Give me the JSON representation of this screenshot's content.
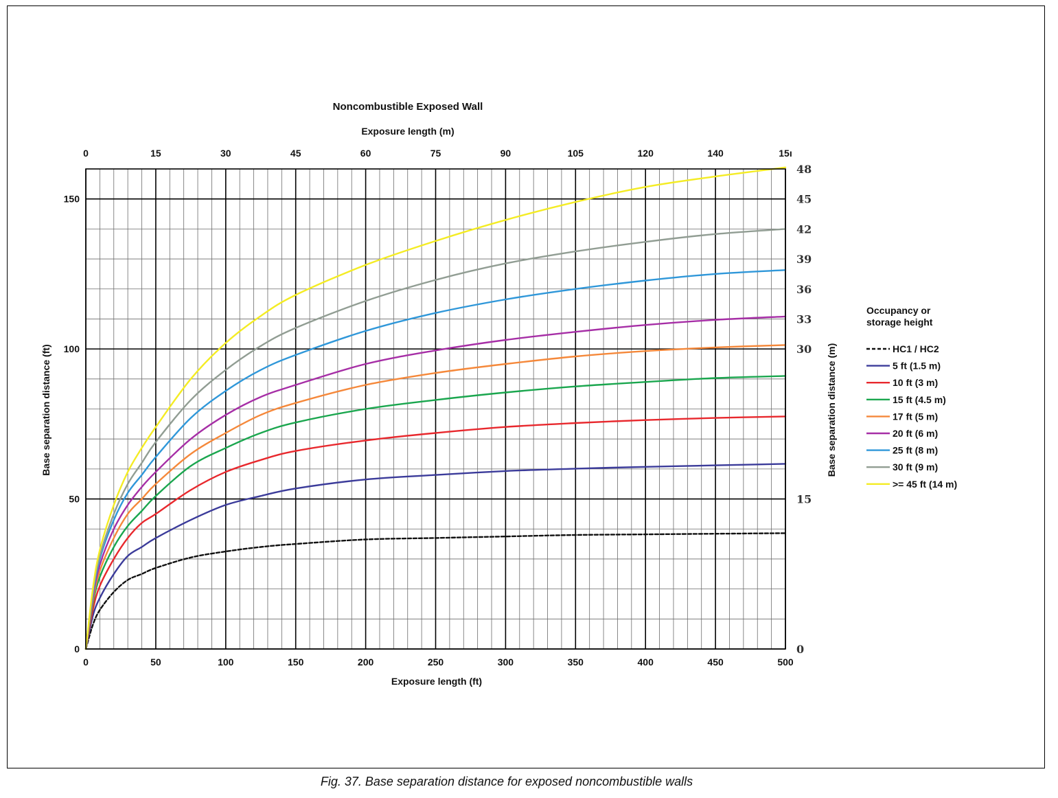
{
  "chart_data": {
    "type": "line",
    "title": "Noncombustible Exposed Wall",
    "xlabel": "Exposure length (ft)",
    "x2label": "Exposure length (m)",
    "ylabel": "Base separation distance (ft)",
    "y2label": "Base separation distance (m)",
    "xlim": [
      0,
      500
    ],
    "ylim": [
      0,
      160
    ],
    "x_ticks": [
      0,
      50,
      100,
      150,
      200,
      250,
      300,
      350,
      400,
      450,
      500
    ],
    "y_ticks": [
      0,
      50,
      100,
      150
    ],
    "x2_ticks": [
      {
        "label": "0",
        "ft": 0
      },
      {
        "label": "15",
        "ft": 50
      },
      {
        "label": "30",
        "ft": 100
      },
      {
        "label": "45",
        "ft": 150
      },
      {
        "label": "60",
        "ft": 200
      },
      {
        "label": "75",
        "ft": 250
      },
      {
        "label": "90",
        "ft": 300
      },
      {
        "label": "105",
        "ft": 350
      },
      {
        "label": "120",
        "ft": 400
      },
      {
        "label": "140",
        "ft": 450
      },
      {
        "label": "15ı",
        "ft": 500
      }
    ],
    "y2_ticks": [
      {
        "label": "0",
        "ft": 0
      },
      {
        "label": "15",
        "ft": 50
      },
      {
        "label": "30",
        "ft": 100
      },
      {
        "label": "33",
        "ft": 110
      },
      {
        "label": "36",
        "ft": 120
      },
      {
        "label": "39",
        "ft": 130
      },
      {
        "label": "42",
        "ft": 140
      },
      {
        "label": "45",
        "ft": 150
      },
      {
        "label": "48",
        "ft": 160
      }
    ],
    "grid": true,
    "legend": {
      "title": [
        "Occupancy or",
        "storage height"
      ],
      "position": "right"
    },
    "x": [
      0,
      5,
      10,
      20,
      30,
      40,
      50,
      75,
      100,
      125,
      150,
      200,
      250,
      300,
      350,
      400,
      450,
      500
    ],
    "series": [
      {
        "name": "HC1 / HC2",
        "color": "#111111",
        "dashed": true,
        "values": [
          0,
          8,
          13,
          19,
          23,
          25,
          27,
          30.5,
          32.5,
          34,
          35,
          36.5,
          37,
          37.5,
          38,
          38.2,
          38.4,
          38.6
        ]
      },
      {
        "name": "5 ft (1.5 m)",
        "color": "#3b3b9a",
        "dashed": false,
        "values": [
          0,
          11,
          17,
          25,
          31,
          34,
          37,
          43,
          48,
          51,
          53.5,
          56.5,
          58,
          59.3,
          60.1,
          60.7,
          61.2,
          61.7
        ]
      },
      {
        "name": "10 ft (3 m)",
        "color": "#e8282d",
        "dashed": false,
        "values": [
          0,
          13,
          21,
          30,
          37,
          42,
          45,
          53,
          59,
          63,
          66,
          69.5,
          72,
          74,
          75.3,
          76.3,
          77,
          77.5
        ]
      },
      {
        "name": "15 ft (4.5 m)",
        "color": "#1aa64e",
        "dashed": false,
        "values": [
          0,
          15,
          24,
          34,
          41,
          46,
          51,
          61,
          67,
          72,
          75.5,
          80,
          83,
          85.5,
          87.5,
          89,
          90.3,
          91
        ]
      },
      {
        "name": "17 ft (5 m)",
        "color": "#f5883a",
        "dashed": false,
        "values": [
          0,
          16,
          26,
          37,
          45,
          50,
          55,
          65,
          72,
          78,
          82,
          88,
          92,
          95,
          97.5,
          99.3,
          100.5,
          101.3
        ]
      },
      {
        "name": "20 ft (6 m)",
        "color": "#a62ea6",
        "dashed": false,
        "values": [
          0,
          17,
          28,
          40,
          48,
          54,
          59,
          70,
          78,
          84,
          88,
          95,
          99.5,
          103,
          105.7,
          108,
          109.7,
          110.8
        ]
      },
      {
        "name": "25 ft (8 m)",
        "color": "#2f97d9",
        "dashed": false,
        "values": [
          0,
          18,
          30,
          43,
          52,
          58,
          64,
          77,
          86,
          93,
          98,
          106,
          112,
          116.5,
          120,
          122.8,
          125,
          126.3
        ]
      },
      {
        "name": "30 ft (9 m)",
        "color": "#919d93",
        "dashed": false,
        "values": [
          0,
          19,
          31,
          45,
          55,
          62,
          69,
          83,
          93,
          101,
          107,
          116,
          123,
          128.5,
          132.5,
          135.7,
          138.3,
          140
        ]
      },
      {
        "name": ">= 45 ft (14 m)",
        "color": "#f4ec24",
        "dashed": false,
        "values": [
          0,
          20,
          33,
          48,
          59,
          67,
          74,
          90,
          102,
          111,
          118,
          128,
          136,
          143,
          149,
          154,
          157.5,
          160.5
        ]
      }
    ]
  },
  "caption": "Fig. 37. Base separation distance for exposed noncombustible walls"
}
